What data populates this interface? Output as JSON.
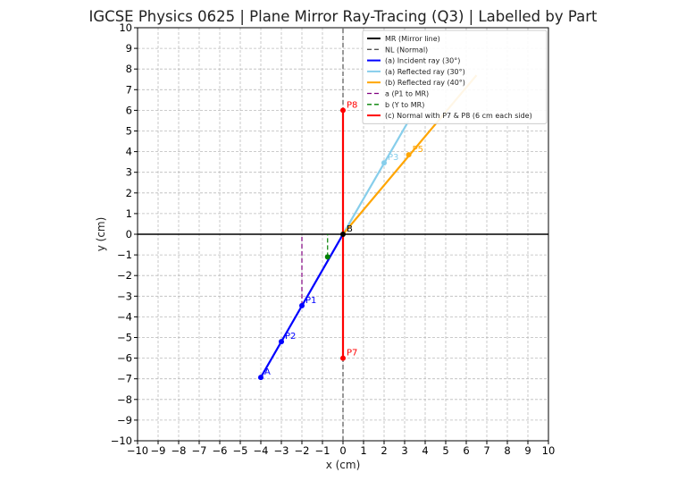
{
  "chart_data": {
    "type": "line",
    "title": "IGCSE Physics 0625 | Plane Mirror Ray-Tracing (Q3) | Labelled by Part",
    "xlabel": "x (cm)",
    "ylabel": "y (cm)",
    "xlim": [
      -10,
      10
    ],
    "ylim": [
      -10,
      10
    ],
    "xticks": [
      "−10",
      "−9",
      "−8",
      "−7",
      "−6",
      "−5",
      "−4",
      "−3",
      "−2",
      "−1",
      "0",
      "1",
      "2",
      "3",
      "4",
      "5",
      "6",
      "7",
      "8",
      "9",
      "10"
    ],
    "yticks": [
      "−10",
      "−9",
      "−8",
      "−7",
      "−6",
      "−5",
      "−4",
      "−3",
      "−2",
      "−1",
      "0",
      "1",
      "2",
      "3",
      "4",
      "5",
      "6",
      "7",
      "8",
      "9",
      "10"
    ],
    "grid": true,
    "legend_position": "top-right",
    "series": [
      {
        "name": "MR (Mirror line)",
        "color": "#000000",
        "style": "solid",
        "points": [
          [
            -10,
            0
          ],
          [
            10,
            0
          ]
        ]
      },
      {
        "name": "NL (Normal)",
        "color": "#555555",
        "style": "dashed",
        "points": [
          [
            0,
            -10
          ],
          [
            0,
            10
          ]
        ]
      },
      {
        "name": "(a) Incident ray (30°)",
        "color": "#0000ff",
        "style": "solid",
        "points": [
          [
            -4,
            -6.93
          ],
          [
            0,
            0
          ]
        ]
      },
      {
        "name": "(a) Reflected ray (30°)",
        "color": "#87ceeb",
        "style": "solid",
        "points": [
          [
            0,
            0
          ],
          [
            3.2,
            5.5
          ]
        ]
      },
      {
        "name": "(b) Reflected ray (40°)",
        "color": "#ffa500",
        "style": "solid",
        "points": [
          [
            0,
            0
          ],
          [
            6.5,
            7.7
          ]
        ]
      },
      {
        "name": "a (P1 to MR)",
        "color": "#800080",
        "style": "dashed",
        "points": [
          [
            -2,
            -3.46
          ],
          [
            -2,
            0
          ]
        ]
      },
      {
        "name": "b (Y to MR)",
        "color": "#008000",
        "style": "dashed",
        "points": [
          [
            -0.75,
            -1.1
          ],
          [
            -0.75,
            0
          ]
        ]
      },
      {
        "name": "(c) Normal with P7 & P8 (6 cm each side)",
        "color": "#ff0000",
        "style": "solid",
        "points": [
          [
            0,
            -6
          ],
          [
            0,
            6
          ]
        ]
      }
    ],
    "points": [
      {
        "label": "A",
        "x": -4,
        "y": -6.93,
        "color": "#0000ff"
      },
      {
        "label": "P2",
        "x": -3,
        "y": -5.2,
        "color": "#0000ff"
      },
      {
        "label": "P1",
        "x": -2,
        "y": -3.46,
        "color": "#0000ff"
      },
      {
        "label": "",
        "x": -0.75,
        "y": -1.1,
        "color": "#008000"
      },
      {
        "label": "B",
        "x": 0,
        "y": 0,
        "color": "#000000"
      },
      {
        "label": "P3",
        "x": 2,
        "y": 3.46,
        "color": "#87ceeb"
      },
      {
        "label": "P5",
        "x": 3.2,
        "y": 3.85,
        "color": "#ffa500"
      },
      {
        "label": "P7",
        "x": 0,
        "y": -6,
        "color": "#ff0000"
      },
      {
        "label": "P8",
        "x": 0,
        "y": 6,
        "color": "#ff0000"
      }
    ]
  }
}
